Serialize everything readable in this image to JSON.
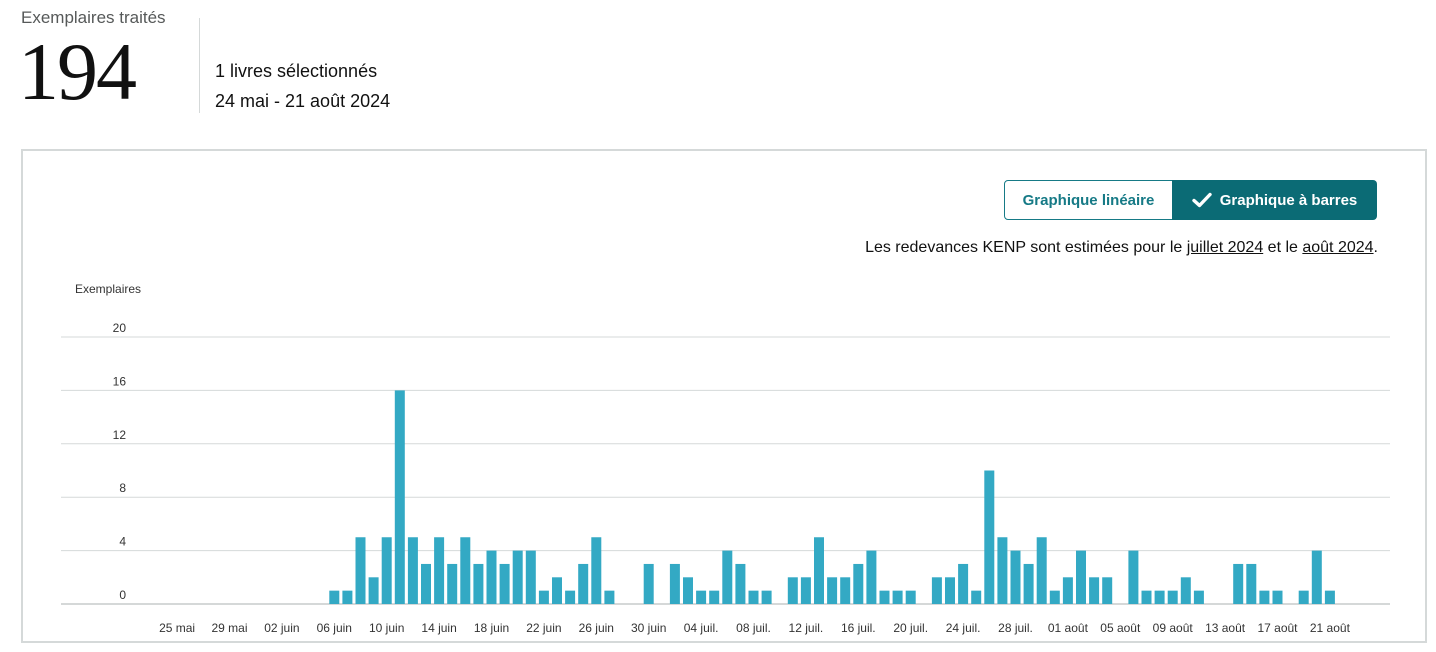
{
  "summary": {
    "label": "Exemplaires traités",
    "value": "194",
    "books_selected": "1 livres sélectionnés",
    "date_range": "24 mai - 21 août 2024"
  },
  "toggle": {
    "line_label": "Graphique linéaire",
    "bar_label": "Graphique à barres",
    "selected": "bar",
    "check_icon": "check-icon"
  },
  "kenp": {
    "prefix": "Les redevances KENP sont estimées pour le ",
    "link1": "juillet 2024",
    "middle": " et le ",
    "link2": "août 2024",
    "suffix": "."
  },
  "colors": {
    "bar": "#33a9c4",
    "accent": "#167a86",
    "accent_dark": "#0b6b75",
    "grid": "#d5d9d9"
  },
  "chart_data": {
    "type": "bar",
    "ylabel": "Exemplaires",
    "ylim": [
      0,
      20
    ],
    "yticks": [
      0,
      4,
      8,
      12,
      16,
      20
    ],
    "tick_labels": [
      "25 mai",
      "29 mai",
      "02 juin",
      "06 juin",
      "10 juin",
      "14 juin",
      "18 juin",
      "22 juin",
      "26 juin",
      "30 juin",
      "04 juil.",
      "08 juil.",
      "12 juil.",
      "16 juil.",
      "20 juil.",
      "24 juil.",
      "28 juil.",
      "01 août",
      "05 août",
      "09 août",
      "13 août",
      "17 août",
      "21 août"
    ],
    "x": [
      "2024-05-24",
      "2024-05-25",
      "2024-05-26",
      "2024-05-27",
      "2024-05-28",
      "2024-05-29",
      "2024-05-30",
      "2024-05-31",
      "2024-06-01",
      "2024-06-02",
      "2024-06-03",
      "2024-06-04",
      "2024-06-05",
      "2024-06-06",
      "2024-06-07",
      "2024-06-08",
      "2024-06-09",
      "2024-06-10",
      "2024-06-11",
      "2024-06-12",
      "2024-06-13",
      "2024-06-14",
      "2024-06-15",
      "2024-06-16",
      "2024-06-17",
      "2024-06-18",
      "2024-06-19",
      "2024-06-20",
      "2024-06-21",
      "2024-06-22",
      "2024-06-23",
      "2024-06-24",
      "2024-06-25",
      "2024-06-26",
      "2024-06-27",
      "2024-06-28",
      "2024-06-29",
      "2024-06-30",
      "2024-07-01",
      "2024-07-02",
      "2024-07-03",
      "2024-07-04",
      "2024-07-05",
      "2024-07-06",
      "2024-07-07",
      "2024-07-08",
      "2024-07-09",
      "2024-07-10",
      "2024-07-11",
      "2024-07-12",
      "2024-07-13",
      "2024-07-14",
      "2024-07-15",
      "2024-07-16",
      "2024-07-17",
      "2024-07-18",
      "2024-07-19",
      "2024-07-20",
      "2024-07-21",
      "2024-07-22",
      "2024-07-23",
      "2024-07-24",
      "2024-07-25",
      "2024-07-26",
      "2024-07-27",
      "2024-07-28",
      "2024-07-29",
      "2024-07-30",
      "2024-07-31",
      "2024-08-01",
      "2024-08-02",
      "2024-08-03",
      "2024-08-04",
      "2024-08-05",
      "2024-08-06",
      "2024-08-07",
      "2024-08-08",
      "2024-08-09",
      "2024-08-10",
      "2024-08-11",
      "2024-08-12",
      "2024-08-13",
      "2024-08-14",
      "2024-08-15",
      "2024-08-16",
      "2024-08-17",
      "2024-08-18",
      "2024-08-19",
      "2024-08-20",
      "2024-08-21"
    ],
    "values": [
      0,
      0,
      0,
      0,
      0,
      0,
      0,
      0,
      0,
      0,
      0,
      0,
      0,
      1,
      1,
      5,
      2,
      5,
      16,
      5,
      3,
      5,
      3,
      5,
      3,
      4,
      3,
      4,
      4,
      1,
      2,
      1,
      3,
      5,
      1,
      0,
      0,
      3,
      0,
      3,
      2,
      1,
      1,
      4,
      3,
      1,
      1,
      0,
      2,
      2,
      5,
      2,
      2,
      3,
      4,
      1,
      1,
      1,
      0,
      2,
      2,
      3,
      1,
      10,
      5,
      4,
      3,
      5,
      1,
      2,
      4,
      2,
      2,
      0,
      4,
      1,
      1,
      1,
      2,
      1,
      0,
      0,
      3,
      3,
      1,
      1,
      0,
      1,
      4,
      1
    ]
  }
}
